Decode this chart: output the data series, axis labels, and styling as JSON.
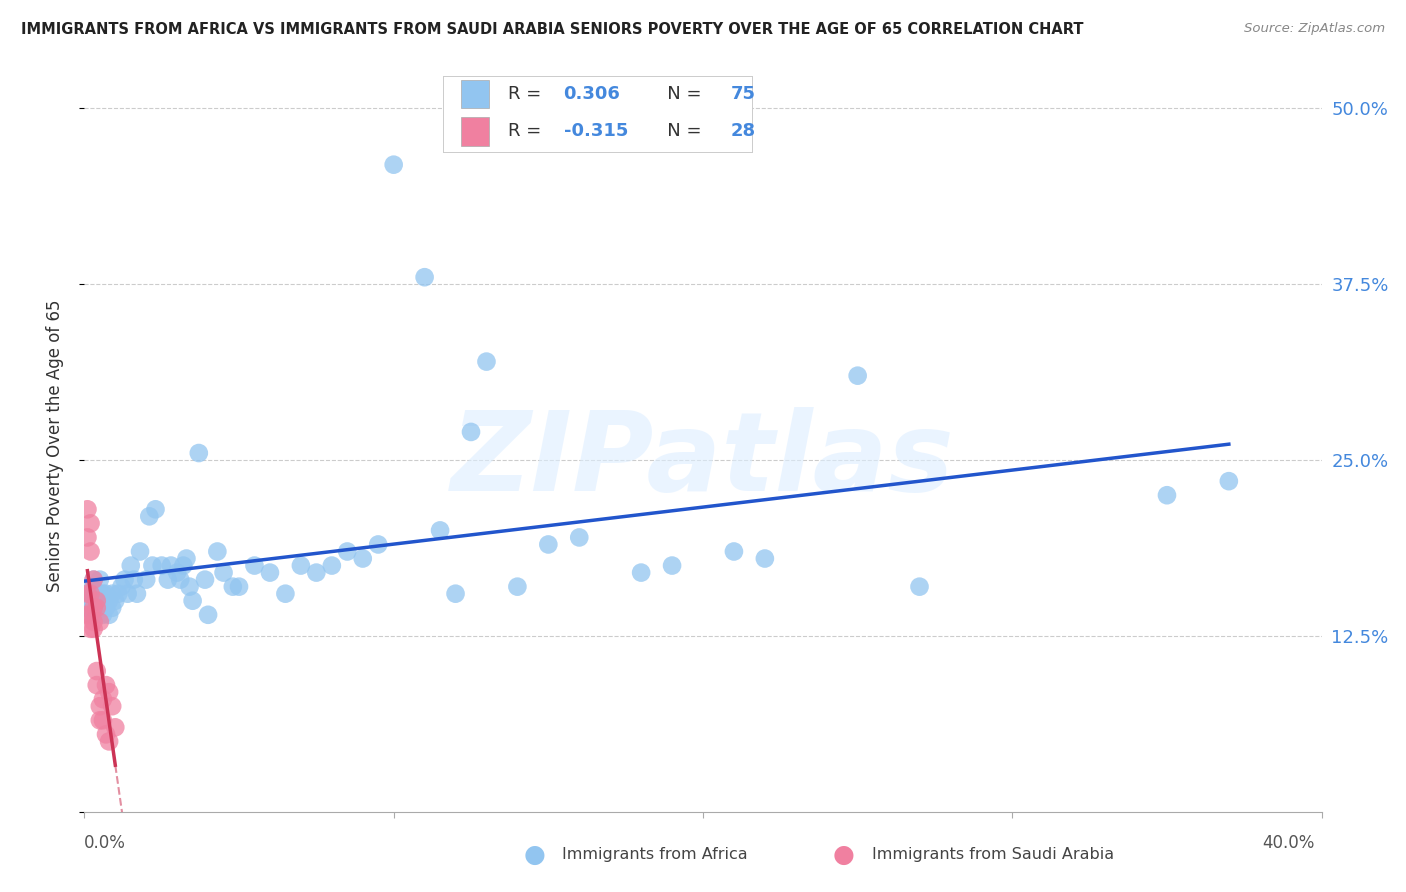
{
  "title": "IMMIGRANTS FROM AFRICA VS IMMIGRANTS FROM SAUDI ARABIA SENIORS POVERTY OVER THE AGE OF 65 CORRELATION CHART",
  "source": "Source: ZipAtlas.com",
  "ylabel": "Seniors Poverty Over the Age of 65",
  "xlim": [
    0.0,
    0.4
  ],
  "ylim": [
    0.0,
    0.52
  ],
  "yticks": [
    0.0,
    0.125,
    0.25,
    0.375,
    0.5
  ],
  "ytick_labels": [
    "",
    "12.5%",
    "25.0%",
    "37.5%",
    "50.0%"
  ],
  "africa_color": "#92c5f0",
  "saudi_color": "#f080a0",
  "africa_line_color": "#2255cc",
  "saudi_line_color": "#cc3355",
  "watermark_text": "ZIPatlas",
  "legend_africa_r": "R =  0.306",
  "legend_africa_n": "N = 75",
  "legend_saudi_r": "R = -0.315",
  "legend_saudi_n": "N = 28",
  "bottom_label_africa": "Immigrants from Africa",
  "bottom_label_saudi": "Immigrants from Saudi Arabia",
  "africa_scatter_x": [
    0.001,
    0.001,
    0.002,
    0.002,
    0.003,
    0.003,
    0.003,
    0.004,
    0.004,
    0.005,
    0.005,
    0.005,
    0.006,
    0.006,
    0.007,
    0.007,
    0.008,
    0.008,
    0.009,
    0.009,
    0.01,
    0.011,
    0.012,
    0.013,
    0.014,
    0.015,
    0.016,
    0.017,
    0.018,
    0.02,
    0.021,
    0.022,
    0.023,
    0.025,
    0.027,
    0.028,
    0.03,
    0.031,
    0.032,
    0.033,
    0.034,
    0.035,
    0.037,
    0.039,
    0.04,
    0.043,
    0.045,
    0.048,
    0.05,
    0.055,
    0.06,
    0.065,
    0.07,
    0.075,
    0.08,
    0.085,
    0.09,
    0.095,
    0.1,
    0.11,
    0.115,
    0.12,
    0.125,
    0.13,
    0.14,
    0.15,
    0.16,
    0.18,
    0.19,
    0.21,
    0.22,
    0.25,
    0.27,
    0.35,
    0.37
  ],
  "africa_scatter_y": [
    0.155,
    0.145,
    0.15,
    0.16,
    0.14,
    0.155,
    0.165,
    0.145,
    0.155,
    0.145,
    0.155,
    0.165,
    0.14,
    0.155,
    0.145,
    0.155,
    0.15,
    0.14,
    0.155,
    0.145,
    0.15,
    0.155,
    0.16,
    0.165,
    0.155,
    0.175,
    0.165,
    0.155,
    0.185,
    0.165,
    0.21,
    0.175,
    0.215,
    0.175,
    0.165,
    0.175,
    0.17,
    0.165,
    0.175,
    0.18,
    0.16,
    0.15,
    0.255,
    0.165,
    0.14,
    0.185,
    0.17,
    0.16,
    0.16,
    0.175,
    0.17,
    0.155,
    0.175,
    0.17,
    0.175,
    0.185,
    0.18,
    0.19,
    0.46,
    0.38,
    0.2,
    0.155,
    0.27,
    0.32,
    0.16,
    0.19,
    0.195,
    0.17,
    0.175,
    0.185,
    0.18,
    0.31,
    0.16,
    0.225,
    0.235
  ],
  "saudi_scatter_x": [
    0.001,
    0.001,
    0.001,
    0.001,
    0.002,
    0.002,
    0.002,
    0.002,
    0.002,
    0.003,
    0.003,
    0.003,
    0.003,
    0.004,
    0.004,
    0.004,
    0.004,
    0.005,
    0.005,
    0.005,
    0.006,
    0.006,
    0.007,
    0.007,
    0.008,
    0.008,
    0.009,
    0.01
  ],
  "saudi_scatter_y": [
    0.215,
    0.195,
    0.155,
    0.14,
    0.205,
    0.185,
    0.155,
    0.14,
    0.13,
    0.165,
    0.145,
    0.135,
    0.13,
    0.15,
    0.145,
    0.1,
    0.09,
    0.135,
    0.075,
    0.065,
    0.08,
    0.065,
    0.09,
    0.055,
    0.085,
    0.05,
    0.075,
    0.06
  ]
}
